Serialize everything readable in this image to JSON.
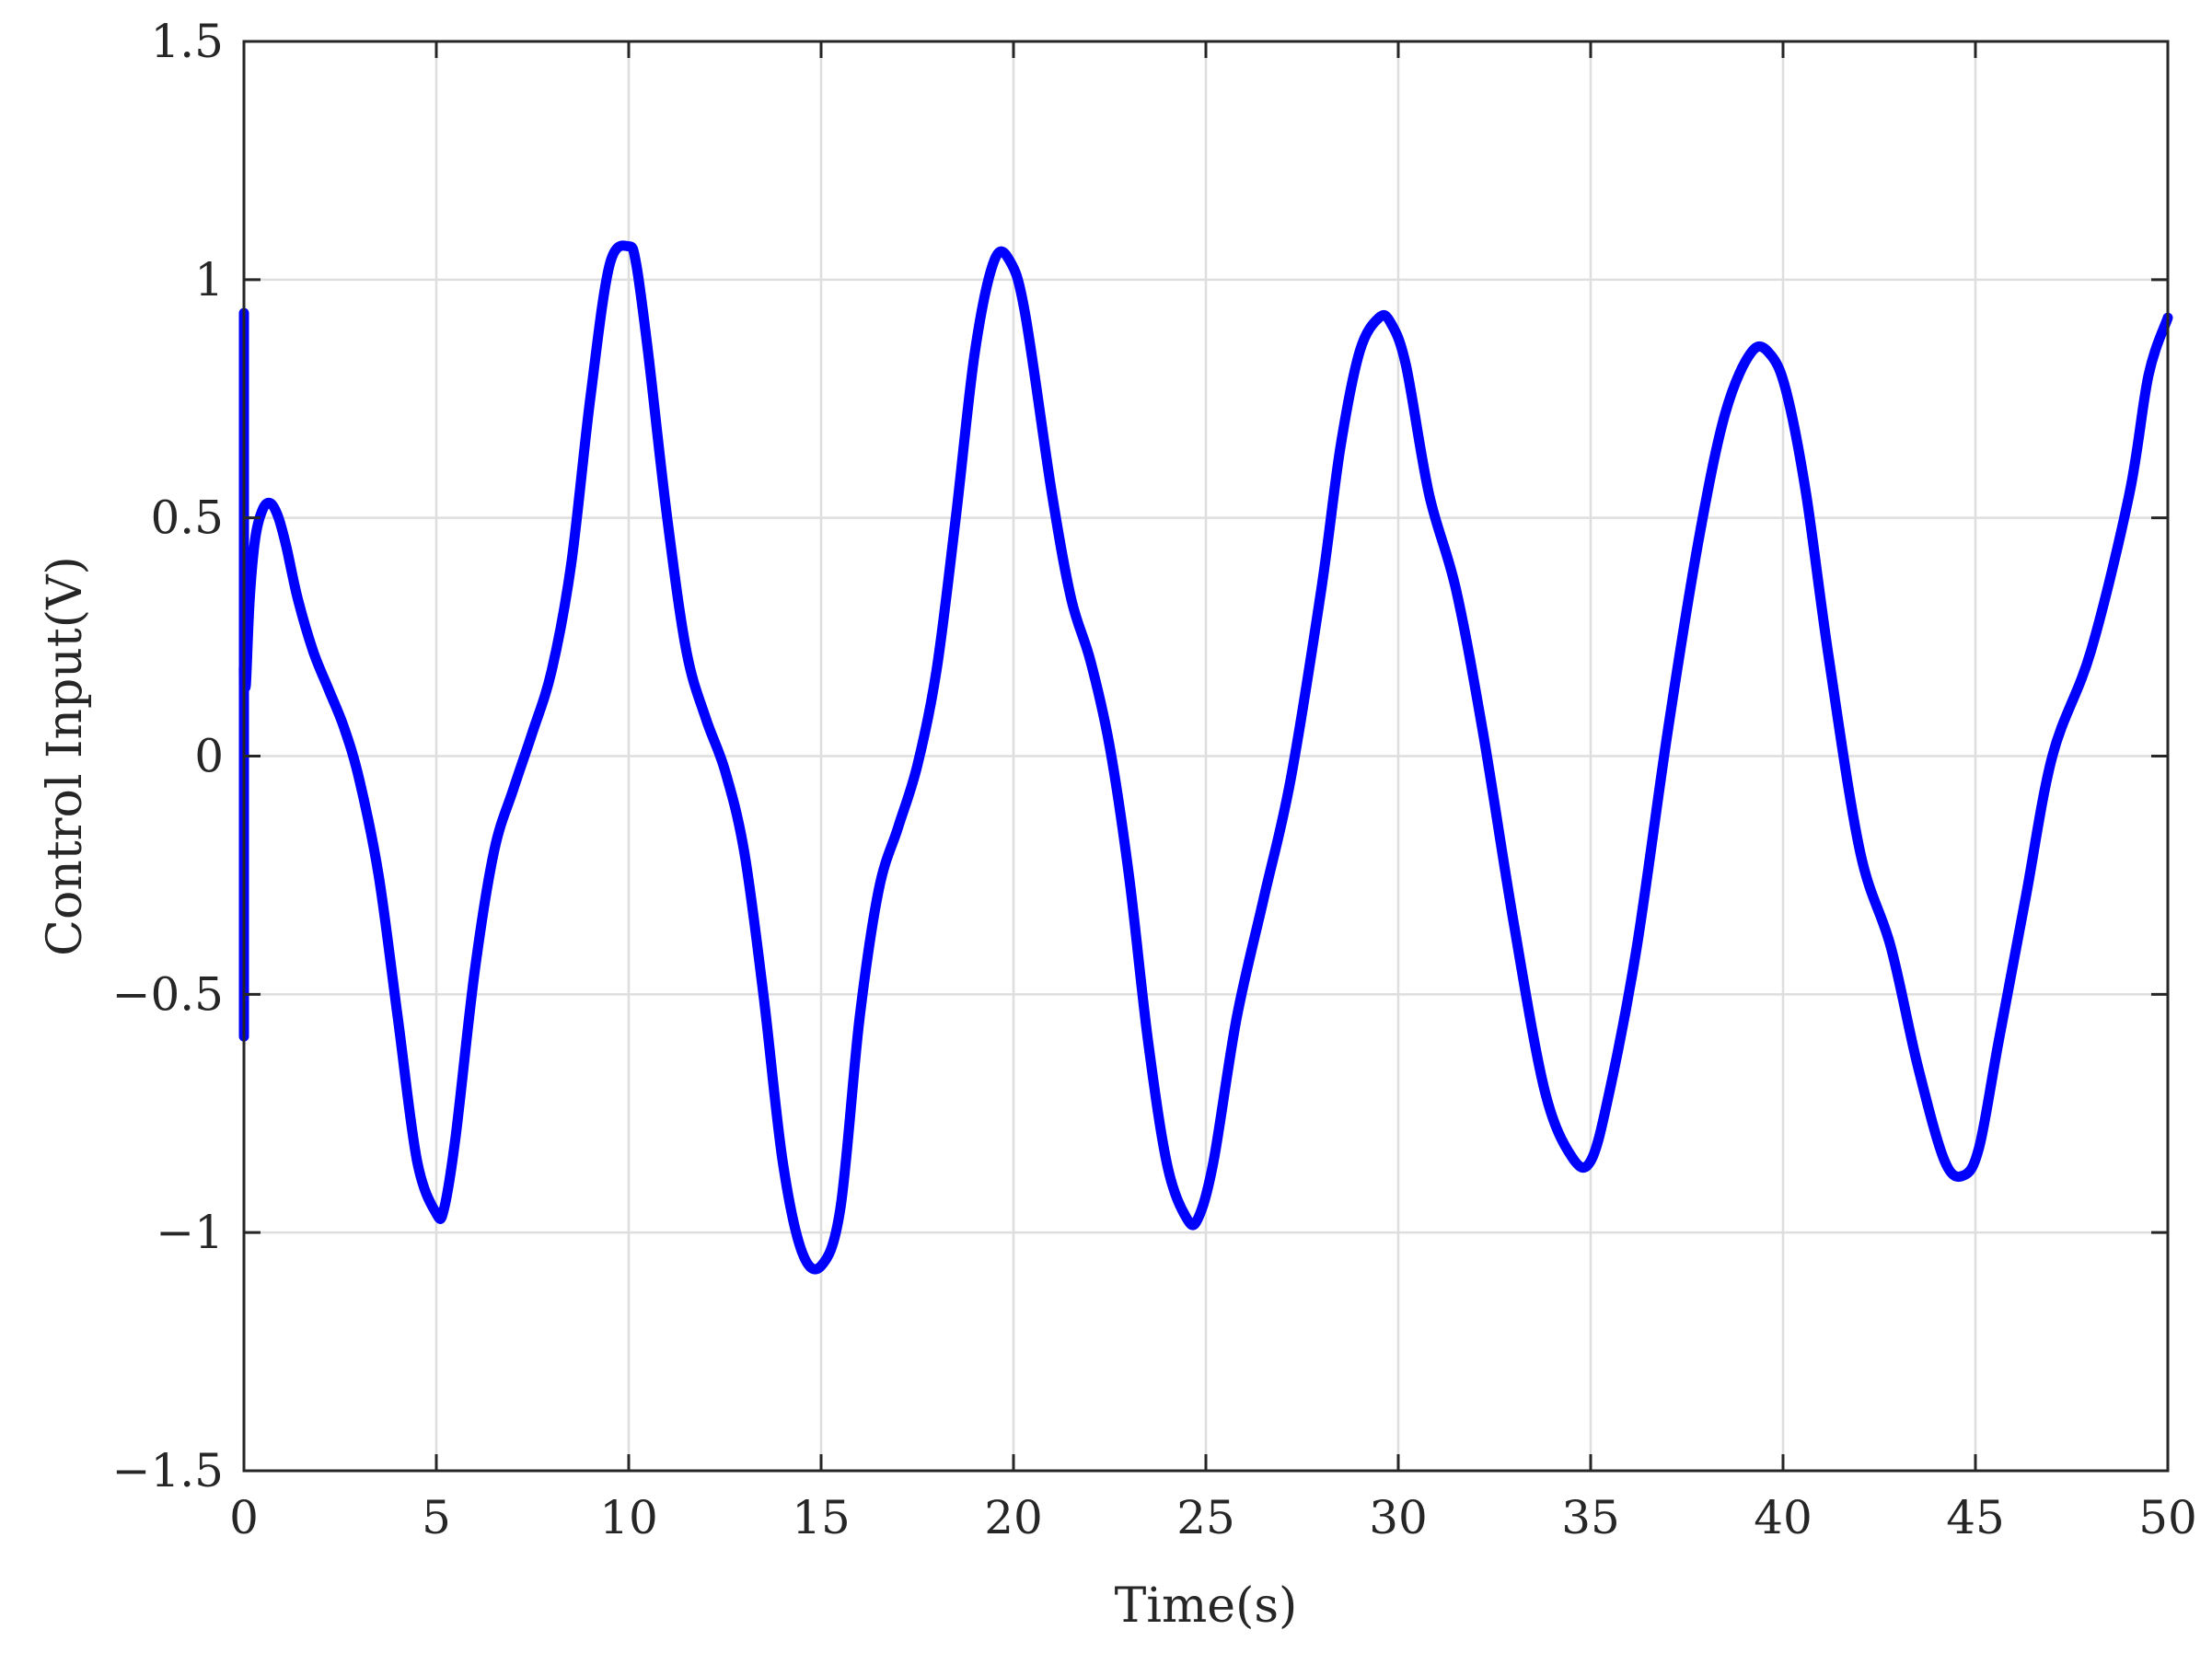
{
  "chart_data": {
    "type": "line",
    "xlabel": "Time(s)",
    "ylabel": "Control Input(V)",
    "xlim": [
      0,
      50
    ],
    "ylim": [
      -1.5,
      1.5
    ],
    "xticks": [
      0,
      5,
      10,
      15,
      20,
      25,
      30,
      35,
      40,
      45,
      50
    ],
    "xtick_labels": [
      "0",
      "5",
      "10",
      "15",
      "20",
      "25",
      "30",
      "35",
      "40",
      "45",
      "50"
    ],
    "yticks": [
      -1.5,
      -1,
      -0.5,
      0,
      0.5,
      1,
      1.5
    ],
    "ytick_labels": [
      "−1.5",
      "−1",
      "−0.5",
      "0",
      "0.5",
      "1",
      "1.5"
    ],
    "grid": true,
    "series": [
      {
        "color": "#0000ff",
        "x": [
          0,
          0,
          0,
          0,
          0.05,
          0.15,
          0.3,
          0.5,
          0.7,
          0.9,
          1.1,
          1.4,
          1.8,
          2.2,
          2.6,
          3.0,
          3.5,
          4.0,
          4.5,
          5.0,
          5.2,
          5.5,
          6.0,
          6.5,
          7.0,
          7.5,
          8.0,
          8.5,
          9.0,
          9.5,
          10.0,
          10.2,
          10.5,
          11.0,
          11.5,
          12.0,
          12.5,
          13.0,
          13.5,
          14.0,
          14.5,
          15.0,
          15.5,
          16.0,
          16.5,
          17.0,
          17.5,
          18.0,
          18.5,
          19.0,
          19.5,
          19.9,
          20.3,
          21.0,
          21.5,
          22.0,
          22.5,
          23.0,
          23.5,
          24.0,
          24.5,
          24.8,
          25.2,
          25.8,
          26.5,
          27.2,
          28.0,
          28.5,
          29.0,
          29.5,
          29.8,
          30.2,
          30.8,
          31.5,
          32.2,
          33.0,
          33.8,
          34.5,
          35.0,
          35.5,
          36.2,
          37.0,
          37.8,
          38.5,
          39.2,
          39.7,
          40.1,
          40.6,
          41.2,
          42.0,
          42.8,
          43.5,
          44.2,
          44.7,
          45.1,
          45.6,
          46.3,
          47.0,
          48.0,
          49.0,
          49.5,
          50.0
        ],
        "y": [
          0.93,
          -0.57,
          0.1,
          0.18,
          0.15,
          0.33,
          0.46,
          0.52,
          0.53,
          0.5,
          0.44,
          0.33,
          0.22,
          0.14,
          0.06,
          -0.05,
          -0.25,
          -0.55,
          -0.85,
          -0.96,
          -0.95,
          -0.8,
          -0.45,
          -0.2,
          -0.07,
          0.05,
          0.18,
          0.4,
          0.75,
          1.03,
          1.07,
          1.03,
          0.85,
          0.5,
          0.22,
          0.08,
          -0.03,
          -0.2,
          -0.5,
          -0.85,
          -1.04,
          -1.07,
          -0.95,
          -0.55,
          -0.28,
          -0.15,
          -0.02,
          0.18,
          0.5,
          0.85,
          1.04,
          1.04,
          0.93,
          0.55,
          0.33,
          0.2,
          0.02,
          -0.25,
          -0.6,
          -0.86,
          -0.97,
          -0.97,
          -0.85,
          -0.55,
          -0.3,
          -0.05,
          0.35,
          0.65,
          0.85,
          0.92,
          0.91,
          0.82,
          0.55,
          0.35,
          0.05,
          -0.35,
          -0.7,
          -0.84,
          -0.85,
          -0.7,
          -0.4,
          0.05,
          0.45,
          0.72,
          0.85,
          0.84,
          0.76,
          0.55,
          0.2,
          -0.2,
          -0.4,
          -0.65,
          -0.85,
          -0.88,
          -0.82,
          -0.6,
          -0.3,
          0.0,
          0.22,
          0.55,
          0.8,
          0.92
        ]
      }
    ]
  }
}
